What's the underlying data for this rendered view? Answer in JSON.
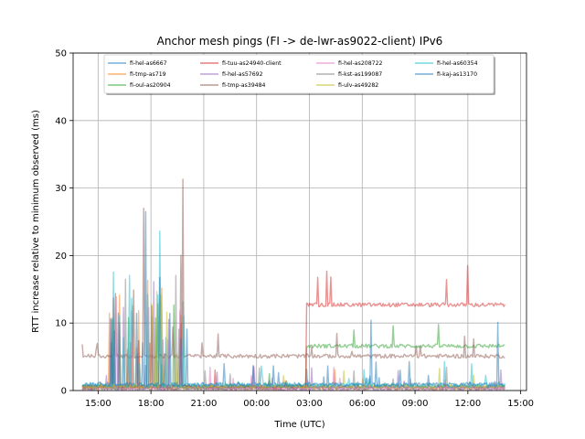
{
  "chart_data": {
    "type": "line",
    "title": "Anchor mesh pings (FI -> de-lwr-as9022-client) IPv6",
    "xlabel": "Time (UTC)",
    "ylabel": "RTT increase relative to minimum observed (ms)",
    "xlim": [
      "13:35",
      "15:20 (+1 day)"
    ],
    "x_tick_labels": [
      "15:00",
      "18:00",
      "21:00",
      "00:00",
      "03:00",
      "06:00",
      "09:00",
      "12:00",
      "15:00"
    ],
    "x_ticks_hours": [
      15,
      18,
      21,
      24,
      27,
      30,
      33,
      36,
      39
    ],
    "x_range_hours": [
      13.58,
      39.33
    ],
    "data_range_hours": [
      14.1,
      38.1
    ],
    "ylim": [
      0,
      50
    ],
    "y_ticks": [
      0,
      10,
      20,
      30,
      40,
      50
    ],
    "grid": true,
    "legend_position": "top",
    "series": [
      {
        "name": "fi-hel-as6667",
        "color": "#1f77b4",
        "baseline": 0.6,
        "baseline_after_shift": 0.6
      },
      {
        "name": "fi-tmp-as719",
        "color": "#ff7f0e",
        "baseline": 0.4,
        "baseline_after_shift": 0.4
      },
      {
        "name": "fi-oul-as20904",
        "color": "#2ca02c",
        "baseline": 0.5,
        "shift_at_hour": 26.8,
        "baseline_after_shift": 6.6
      },
      {
        "name": "fi-tuu-as24940-client",
        "color": "#d62728",
        "baseline": 0.5,
        "shift_at_hour": 26.8,
        "baseline_after_shift": 12.7
      },
      {
        "name": "fi-hel-as57692",
        "color": "#9467bd",
        "baseline": 0.3,
        "baseline_after_shift": 0.3
      },
      {
        "name": "fi-tmp-as39484",
        "color": "#8c564b",
        "baseline": 5.1,
        "baseline_after_shift": 5.1
      },
      {
        "name": "fi-hel-as208722",
        "color": "#e377c2",
        "baseline": 0.4,
        "baseline_after_shift": 0.4
      },
      {
        "name": "fi-kst-as199087",
        "color": "#7f7f7f",
        "baseline": 0.5,
        "baseline_after_shift": 0.5
      },
      {
        "name": "fi-ulv-as49282",
        "color": "#bcbd22",
        "baseline": 0.6,
        "baseline_after_shift": 0.6
      },
      {
        "name": "fi-hel-as60354",
        "color": "#17becf",
        "baseline": 0.8,
        "baseline_after_shift": 0.8
      },
      {
        "name": "fi-kaj-as13170",
        "color": "#1f77b4",
        "baseline": 0.9,
        "baseline_after_shift": 0.9
      }
    ],
    "notable_peaks": [
      {
        "series": "fi-tmp-as39484",
        "x_hour": 19.8,
        "y": 31.3
      },
      {
        "series": "fi-tmp-as39484",
        "x_hour": 17.6,
        "y": 27.0
      },
      {
        "series": "fi-hel-as60354",
        "x_hour": 18.5,
        "y": 23.6
      },
      {
        "series": "fi-kaj-as13170",
        "x_hour": 17.7,
        "y": 26.5
      },
      {
        "series": "fi-tuu-as24940-client",
        "x_hour": 28.0,
        "y": 17.7
      },
      {
        "series": "fi-tuu-as24940-client",
        "x_hour": 36.0,
        "y": 18.5
      },
      {
        "series": "fi-kaj-as13170",
        "x_hour": 30.5,
        "y": 10.4
      },
      {
        "series": "fi-kaj-as13170",
        "x_hour": 37.7,
        "y": 10.1
      }
    ]
  }
}
